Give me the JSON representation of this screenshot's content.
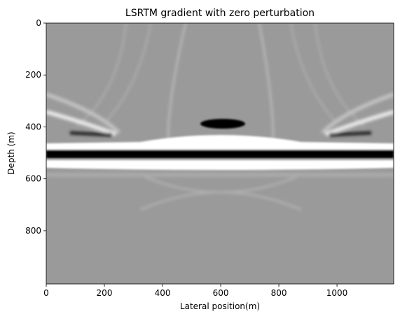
{
  "chart_data": {
    "type": "image",
    "title": "LSRTM gradient with zero perturbation",
    "x_label": "Lateral position(m)",
    "y_label": "Depth (m)",
    "xlim": [
      0,
      1195
    ],
    "ylim": [
      1005,
      0
    ],
    "xticks": [
      0,
      200,
      400,
      600,
      800,
      1000
    ],
    "yticks": [
      0,
      200,
      400,
      600,
      800
    ],
    "colormap": "gray"
  }
}
